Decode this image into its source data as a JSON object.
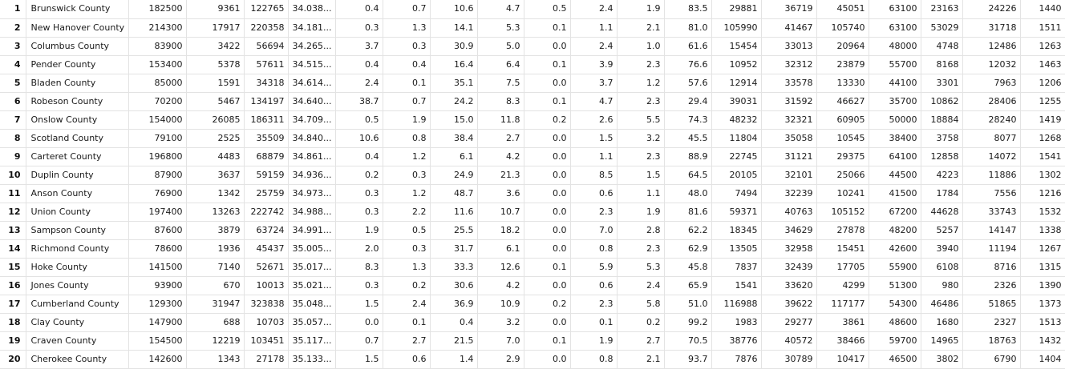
{
  "table": {
    "rows": [
      [
        "1",
        "Brunswick County",
        "182500",
        "9361",
        "122765",
        "34.038...",
        "0.4",
        "0.7",
        "10.6",
        "4.7",
        "0.5",
        "2.4",
        "1.9",
        "83.5",
        "29881",
        "36719",
        "45051",
        "63100",
        "23163",
        "24226",
        "1440"
      ],
      [
        "2",
        "New Hanover County",
        "214300",
        "17917",
        "220358",
        "34.181...",
        "0.3",
        "1.3",
        "14.1",
        "5.3",
        "0.1",
        "1.1",
        "2.1",
        "81.0",
        "105990",
        "41467",
        "105740",
        "63100",
        "53029",
        "31718",
        "1511"
      ],
      [
        "3",
        "Columbus County",
        "83900",
        "3422",
        "56694",
        "34.265...",
        "3.7",
        "0.3",
        "30.9",
        "5.0",
        "0.0",
        "2.4",
        "1.0",
        "61.6",
        "15454",
        "33013",
        "20964",
        "48000",
        "4748",
        "12486",
        "1263"
      ],
      [
        "4",
        "Pender County",
        "153400",
        "5378",
        "57611",
        "34.515...",
        "0.4",
        "0.4",
        "16.4",
        "6.4",
        "0.1",
        "3.9",
        "2.3",
        "76.6",
        "10952",
        "32312",
        "23879",
        "55700",
        "8168",
        "12032",
        "1463"
      ],
      [
        "5",
        "Bladen County",
        "85000",
        "1591",
        "34318",
        "34.614...",
        "2.4",
        "0.1",
        "35.1",
        "7.5",
        "0.0",
        "3.7",
        "1.2",
        "57.6",
        "12914",
        "33578",
        "13330",
        "44100",
        "3301",
        "7963",
        "1206"
      ],
      [
        "6",
        "Robeson County",
        "70200",
        "5467",
        "134197",
        "34.640...",
        "38.7",
        "0.7",
        "24.2",
        "8.3",
        "0.1",
        "4.7",
        "2.3",
        "29.4",
        "39031",
        "31592",
        "46627",
        "35700",
        "10862",
        "28406",
        "1255"
      ],
      [
        "7",
        "Onslow County",
        "154000",
        "26085",
        "186311",
        "34.709...",
        "0.5",
        "1.9",
        "15.0",
        "11.8",
        "0.2",
        "2.6",
        "5.5",
        "74.3",
        "48232",
        "32321",
        "60905",
        "50000",
        "18884",
        "28240",
        "1419"
      ],
      [
        "8",
        "Scotland County",
        "79100",
        "2525",
        "35509",
        "34.840...",
        "10.6",
        "0.8",
        "38.4",
        "2.7",
        "0.0",
        "1.5",
        "3.2",
        "45.5",
        "11804",
        "35058",
        "10545",
        "38400",
        "3758",
        "8077",
        "1268"
      ],
      [
        "9",
        "Carteret County",
        "196800",
        "4483",
        "68879",
        "34.861...",
        "0.4",
        "1.2",
        "6.1",
        "4.2",
        "0.0",
        "1.1",
        "2.3",
        "88.9",
        "22745",
        "31121",
        "29375",
        "64100",
        "12858",
        "14072",
        "1541"
      ],
      [
        "10",
        "Duplin County",
        "87900",
        "3637",
        "59159",
        "34.936...",
        "0.2",
        "0.3",
        "24.9",
        "21.3",
        "0.0",
        "8.5",
        "1.5",
        "64.5",
        "20105",
        "32101",
        "25066",
        "44500",
        "4223",
        "11886",
        "1302"
      ],
      [
        "11",
        "Anson County",
        "76900",
        "1342",
        "25759",
        "34.973...",
        "0.3",
        "1.2",
        "48.7",
        "3.6",
        "0.0",
        "0.6",
        "1.1",
        "48.0",
        "7494",
        "32239",
        "10241",
        "41500",
        "1784",
        "7556",
        "1216"
      ],
      [
        "12",
        "Union County",
        "197400",
        "13263",
        "222742",
        "34.988...",
        "0.3",
        "2.2",
        "11.6",
        "10.7",
        "0.0",
        "2.3",
        "1.9",
        "81.6",
        "59371",
        "40763",
        "105152",
        "67200",
        "44628",
        "33743",
        "1532"
      ],
      [
        "13",
        "Sampson County",
        "87600",
        "3879",
        "63724",
        "34.991...",
        "1.9",
        "0.5",
        "25.5",
        "18.2",
        "0.0",
        "7.0",
        "2.8",
        "62.2",
        "18345",
        "34629",
        "27878",
        "48200",
        "5257",
        "14147",
        "1338"
      ],
      [
        "14",
        "Richmond County",
        "78600",
        "1936",
        "45437",
        "35.005...",
        "2.0",
        "0.3",
        "31.7",
        "6.1",
        "0.0",
        "0.8",
        "2.3",
        "62.9",
        "13505",
        "32958",
        "15451",
        "42600",
        "3940",
        "11194",
        "1267"
      ],
      [
        "15",
        "Hoke County",
        "141500",
        "7140",
        "52671",
        "35.017...",
        "8.3",
        "1.3",
        "33.3",
        "12.6",
        "0.1",
        "5.9",
        "5.3",
        "45.8",
        "7837",
        "32439",
        "17705",
        "55900",
        "6108",
        "8716",
        "1315"
      ],
      [
        "16",
        "Jones County",
        "93900",
        "670",
        "10013",
        "35.021...",
        "0.3",
        "0.2",
        "30.6",
        "4.2",
        "0.0",
        "0.6",
        "2.4",
        "65.9",
        "1541",
        "33620",
        "4299",
        "51300",
        "980",
        "2326",
        "1390"
      ],
      [
        "17",
        "Cumberland County",
        "129300",
        "31947",
        "323838",
        "35.048...",
        "1.5",
        "2.4",
        "36.9",
        "10.9",
        "0.2",
        "2.3",
        "5.8",
        "51.0",
        "116988",
        "39622",
        "117177",
        "54300",
        "46486",
        "51865",
        "1373"
      ],
      [
        "18",
        "Clay County",
        "147900",
        "688",
        "10703",
        "35.057...",
        "0.0",
        "0.1",
        "0.4",
        "3.2",
        "0.0",
        "0.1",
        "0.2",
        "99.2",
        "1983",
        "29277",
        "3861",
        "48600",
        "1680",
        "2327",
        "1513"
      ],
      [
        "19",
        "Craven County",
        "154500",
        "12219",
        "103451",
        "35.117...",
        "0.7",
        "2.7",
        "21.5",
        "7.0",
        "0.1",
        "1.9",
        "2.7",
        "70.5",
        "38776",
        "40572",
        "38466",
        "59700",
        "14965",
        "18763",
        "1432"
      ],
      [
        "20",
        "Cherokee County",
        "142600",
        "1343",
        "27178",
        "35.133...",
        "1.5",
        "0.6",
        "1.4",
        "2.9",
        "0.0",
        "0.8",
        "2.1",
        "93.7",
        "7876",
        "30789",
        "10417",
        "46500",
        "3802",
        "6790",
        "1404"
      ]
    ]
  }
}
